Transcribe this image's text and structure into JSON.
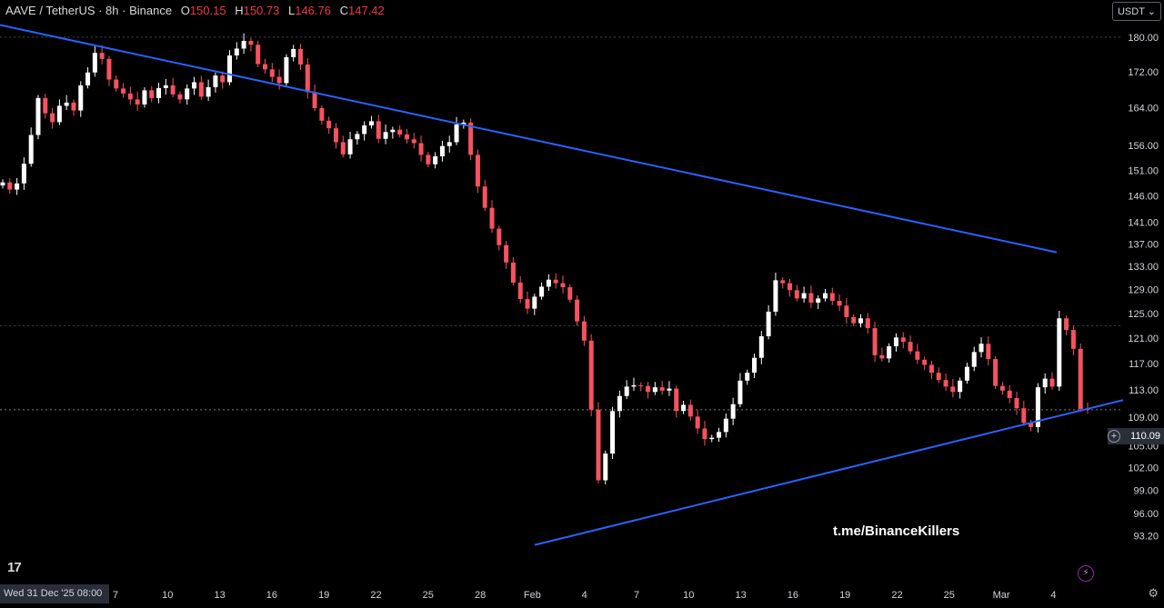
{
  "header": {
    "symbol": "AAVE / TetherUS · 8h · Binance",
    "o_label": "O",
    "o_value": "150.15",
    "h_label": "H",
    "h_value": "150.73",
    "l_label": "L",
    "l_value": "146.76",
    "c_label": "C",
    "c_value": "147.42"
  },
  "currency_button": "USDT",
  "crosshair_date": "Wed 31 Dec '25   08:00",
  "watermark": "t.me/BinanceKillers",
  "current_price": "110.09",
  "colors": {
    "up": "#ffffff",
    "down": "#f7525f",
    "trendline": "#2962ff",
    "background": "#000000"
  },
  "icons": [
    "tradingview-logo",
    "settings-gear-icon",
    "lightning-icon",
    "plus-circle-icon",
    "chevron-down-icon"
  ],
  "chart_data": {
    "type": "candlestick",
    "y_axis_ticks": [
      "180.00",
      "172.00",
      "164.00",
      "156.00",
      "151.00",
      "146.00",
      "141.00",
      "137.00",
      "133.00",
      "129.00",
      "125.00",
      "121.00",
      "117.00",
      "113.00",
      "109.00",
      "105.00",
      "102.00",
      "99.00",
      "96.00",
      "93.20"
    ],
    "x_axis_ticks": [
      "7",
      "10",
      "13",
      "16",
      "19",
      "22",
      "25",
      "28",
      "Feb",
      "4",
      "7",
      "10",
      "13",
      "16",
      "19",
      "22",
      "25",
      "Mar",
      "4"
    ],
    "scale": "log",
    "ylim": [
      92.5,
      185
    ],
    "close_prices": [
      148.6,
      147.2,
      148.4,
      152.3,
      158.2,
      166.1,
      162.8,
      160.9,
      164.4,
      165.1,
      163.4,
      168.9,
      171.8,
      176.3,
      174.9,
      170.2,
      168.2,
      167.1,
      165.8,
      164.7,
      167.8,
      166.1,
      168.3,
      168.9,
      166.9,
      165.8,
      168.2,
      169.6,
      166.4,
      168.5,
      171.1,
      169.6,
      175.7,
      177.3,
      179.1,
      178.2,
      173.7,
      172.5,
      170.8,
      169.4,
      175.3,
      177.2,
      173.6,
      167.4,
      163.9,
      161.2,
      159.6,
      156.7,
      154.2,
      157.3,
      158.4,
      160.2,
      161.1,
      157.4,
      158.8,
      159.3,
      158.3,
      157.3,
      156.5,
      154.1,
      152.2,
      153.8,
      155.9,
      156.7,
      160.4,
      160.8,
      154.1,
      147.8,
      143.7,
      139.8,
      136.8,
      133.7,
      130.2,
      127.4,
      125.8,
      127.8,
      129.5,
      130.7,
      130.1,
      129.4,
      127.3,
      123.7,
      120.6,
      110.1,
      100.3,
      103.9,
      109.9,
      112.1,
      113.5,
      113.7,
      113.6,
      112.7,
      113.4,
      112.9,
      113.2,
      109.9,
      110.8,
      109.1,
      107.4,
      105.9,
      106.1,
      106.9,
      108.8,
      110.9,
      114.4,
      115.6,
      117.9,
      121.3,
      125.3,
      130.6,
      130.1,
      128.9,
      127.5,
      128.4,
      126.8,
      127.5,
      128.4,
      127.1,
      126.3,
      124.4,
      123.4,
      124.2,
      122.6,
      118.3,
      117.8,
      119.7,
      121.1,
      120.4,
      118.9,
      117.6,
      116.8,
      115.6,
      114.5,
      113.5,
      112.7,
      114.4,
      116.5,
      118.8,
      120.1,
      117.7,
      113.6,
      112.9,
      111.8,
      110.3,
      108.2,
      107.6,
      113.4,
      114.7,
      113.5,
      124.2,
      122.3,
      119.3,
      110.2,
      110.1
    ],
    "trendlines": [
      {
        "from": {
          "date": "Jan 3",
          "price": 182.9
        },
        "to": {
          "date": "Feb 28",
          "price": 135.5
        }
      },
      {
        "from": {
          "date": "Feb 1",
          "price": 92.1
        },
        "to": {
          "date": "Mar 5",
          "price": 111.5
        }
      }
    ],
    "dotted_levels": [
      180.0,
      123.0,
      110.09
    ]
  }
}
